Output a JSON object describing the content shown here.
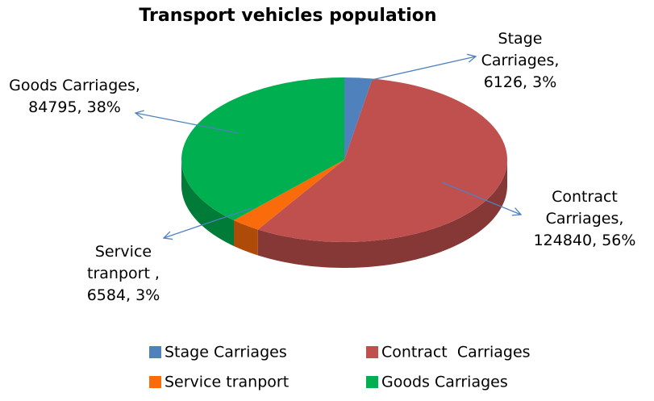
{
  "chart_data": {
    "type": "pie3d",
    "title": "Transport vehicles population",
    "categories": [
      "Stage Carriages",
      "Contract  Carriages",
      "Service tranport",
      "Goods Carriages"
    ],
    "values": [
      6126,
      124840,
      6584,
      84795
    ],
    "value_labels": [
      "Stage Carriages, 6126, 3%",
      "Contract Carriages, 124840, 56%",
      "Service tranport , 6584, 3%",
      "Goods Carriages, 84795, 38%"
    ],
    "colors": [
      "#4f81bd",
      "#c0504d",
      "#f96b0b",
      "#00b050"
    ],
    "legend": "bottom"
  }
}
